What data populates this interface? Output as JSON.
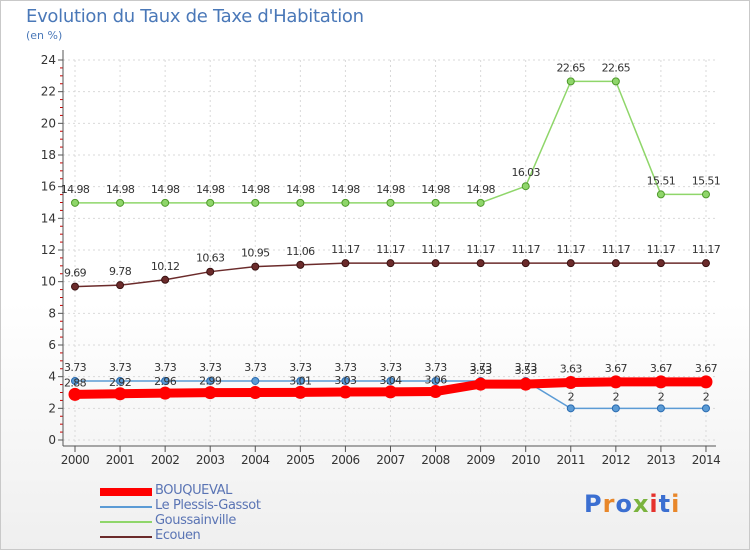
{
  "title": "Evolution du Taux de Taxe d'Habitation",
  "unit": "(en %)",
  "logo_text": "Proxiti",
  "colors": {
    "bouqueval": "#ff0000",
    "plessis": "#5b9bd5",
    "goussainville": "#8fd66a",
    "ecouen": "#6b2b2b",
    "axis": "#555555",
    "grid": "#d9d9d9",
    "tick_red": "#cc0000"
  },
  "chart_data": {
    "type": "line",
    "title": "Evolution du Taux de Taxe d'Habitation",
    "ylabel": "(en %)",
    "xlabel": "",
    "ylim": [
      0,
      24
    ],
    "yticks": [
      "0",
      "2",
      "4",
      "6",
      "8",
      "10",
      "12",
      "14",
      "16",
      "18",
      "20",
      "22",
      "24"
    ],
    "grid": true,
    "legend_placement": "bottom-left",
    "categories": [
      "2000",
      "2001",
      "2002",
      "2003",
      "2004",
      "2005",
      "2006",
      "2007",
      "2008",
      "2009",
      "2010",
      "2011",
      "2012",
      "2013",
      "2014"
    ],
    "series": [
      {
        "name": "BOUQUEVAL",
        "values": [
          2.88,
          2.92,
          2.96,
          2.99,
          3.0,
          3.01,
          3.03,
          3.04,
          3.06,
          3.53,
          3.53,
          3.63,
          3.67,
          3.67,
          3.67
        ],
        "labels": [
          "2.88",
          "2.92",
          "2.96",
          "2.99",
          "",
          "3.01",
          "3.03",
          "3.04",
          "3.06",
          "3.53",
          "3.53",
          "3.63",
          "3.67",
          "3.67",
          "3.67"
        ]
      },
      {
        "name": "Le Plessis-Gassot",
        "values": [
          3.73,
          3.73,
          3.73,
          3.73,
          3.73,
          3.73,
          3.73,
          3.73,
          3.73,
          3.73,
          3.73,
          2,
          2,
          2,
          2
        ],
        "labels": [
          "3.73",
          "3.73",
          "3.73",
          "3.73",
          "3.73",
          "3.73",
          "3.73",
          "3.73",
          "3.73",
          "3.73",
          "3.73",
          "2",
          "2",
          "2",
          "2"
        ]
      },
      {
        "name": "Goussainville",
        "values": [
          14.98,
          14.98,
          14.98,
          14.98,
          14.98,
          14.98,
          14.98,
          14.98,
          14.98,
          14.98,
          16.03,
          22.65,
          22.65,
          15.51,
          15.51
        ],
        "labels": [
          "14.98",
          "14.98",
          "14.98",
          "14.98",
          "14.98",
          "14.98",
          "14.98",
          "14.98",
          "14.98",
          "14.98",
          "16.03",
          "22.65",
          "22.65",
          "15.51",
          "15.51"
        ]
      },
      {
        "name": "Ecouen",
        "values": [
          9.69,
          9.78,
          10.12,
          10.63,
          10.95,
          11.06,
          11.17,
          11.17,
          11.17,
          11.17,
          11.17,
          11.17,
          11.17,
          11.17,
          11.17
        ],
        "labels": [
          "9.69",
          "9.78",
          "10.12",
          "10.63",
          "10.95",
          "11.06",
          "11.17",
          "11.17",
          "11.17",
          "11.17",
          "11.17",
          "11.17",
          "11.17",
          "11.17",
          "11.17"
        ]
      }
    ]
  },
  "legend": [
    {
      "label": "BOUQUEVAL"
    },
    {
      "label": "Le Plessis-Gassot"
    },
    {
      "label": "Goussainville"
    },
    {
      "label": "Ecouen"
    }
  ]
}
